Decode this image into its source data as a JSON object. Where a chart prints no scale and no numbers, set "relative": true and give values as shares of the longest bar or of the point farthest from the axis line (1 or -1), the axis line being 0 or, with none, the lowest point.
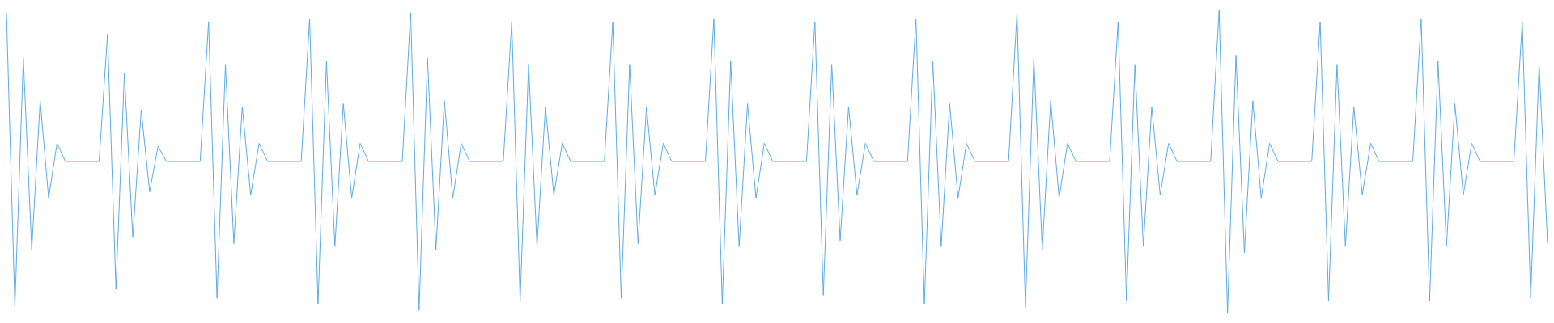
{
  "chart_data": {
    "type": "line",
    "relative": true,
    "color": "#5dade2",
    "categories": [
      null,
      null,
      null,
      null,
      null,
      null,
      null,
      null,
      null,
      null,
      null,
      null,
      null,
      null,
      null,
      null,
      null,
      null,
      null,
      null,
      null,
      null,
      null,
      null,
      null,
      null,
      null,
      null,
      null,
      null,
      null,
      null,
      null,
      null,
      null,
      null,
      null,
      null,
      null,
      null,
      null,
      null,
      null,
      null,
      null,
      null,
      null,
      null,
      null,
      null,
      null,
      null,
      null,
      null,
      null,
      null,
      null,
      null,
      null,
      null,
      null,
      null,
      null,
      null,
      null,
      null,
      null,
      null,
      null,
      null,
      null,
      null,
      null,
      null,
      null,
      null,
      null,
      null,
      null,
      null,
      null,
      null,
      null,
      null,
      null,
      null,
      null,
      null,
      null,
      null,
      null,
      null,
      null,
      null,
      null,
      null,
      null,
      null,
      null,
      null,
      null,
      null,
      null,
      null,
      null,
      null,
      null,
      null,
      null,
      null,
      null,
      null,
      null,
      null,
      null,
      null,
      null,
      null,
      null,
      null,
      null,
      null,
      null,
      null,
      null,
      null,
      null,
      null,
      null,
      null,
      null,
      null,
      null,
      null,
      null,
      null,
      null,
      null,
      null,
      null,
      null,
      null,
      null,
      null,
      null,
      null,
      null,
      null,
      null,
      null,
      null,
      null,
      null,
      null,
      null,
      null,
      null,
      null,
      null,
      null,
      null,
      null,
      null,
      null,
      null,
      null,
      null,
      null,
      null,
      null,
      null,
      null,
      null,
      null,
      null,
      null,
      null,
      null,
      null,
      null,
      null,
      null,
      null,
      null
    ],
    "values": [
      0.99,
      0.02,
      0.84,
      0.21,
      0.7,
      0.38,
      0.56,
      0.5,
      0.5,
      0.5,
      0.5,
      0.5,
      0.92,
      0.08,
      0.79,
      0.25,
      0.67,
      0.4,
      0.55,
      0.5,
      0.5,
      0.5,
      0.5,
      0.5,
      0.96,
      0.05,
      0.82,
      0.23,
      0.68,
      0.39,
      0.56,
      0.5,
      0.5,
      0.5,
      0.5,
      0.5,
      0.97,
      0.03,
      0.83,
      0.22,
      0.69,
      0.38,
      0.56,
      0.5,
      0.5,
      0.5,
      0.5,
      0.5,
      0.99,
      0.01,
      0.84,
      0.21,
      0.7,
      0.38,
      0.56,
      0.5,
      0.5,
      0.5,
      0.5,
      0.5,
      0.96,
      0.04,
      0.82,
      0.22,
      0.68,
      0.39,
      0.56,
      0.5,
      0.5,
      0.5,
      0.5,
      0.5,
      0.96,
      0.05,
      0.82,
      0.23,
      0.68,
      0.39,
      0.56,
      0.5,
      0.5,
      0.5,
      0.5,
      0.5,
      0.97,
      0.03,
      0.83,
      0.22,
      0.69,
      0.38,
      0.56,
      0.5,
      0.5,
      0.5,
      0.5,
      0.5,
      0.96,
      0.06,
      0.82,
      0.24,
      0.68,
      0.39,
      0.56,
      0.5,
      0.5,
      0.5,
      0.5,
      0.5,
      0.97,
      0.03,
      0.83,
      0.22,
      0.69,
      0.38,
      0.56,
      0.5,
      0.5,
      0.5,
      0.5,
      0.5,
      0.99,
      0.02,
      0.84,
      0.21,
      0.7,
      0.38,
      0.56,
      0.5,
      0.5,
      0.5,
      0.5,
      0.5,
      0.96,
      0.04,
      0.82,
      0.22,
      0.68,
      0.39,
      0.56,
      0.5,
      0.5,
      0.5,
      0.5,
      0.5,
      1,
      0,
      0.85,
      0.2,
      0.7,
      0.38,
      0.56,
      0.5,
      0.5,
      0.5,
      0.5,
      0.5,
      0.96,
      0.04,
      0.82,
      0.22,
      0.68,
      0.39,
      0.56,
      0.5,
      0.5,
      0.5,
      0.5,
      0.5,
      0.97,
      0.04,
      0.83,
      0.22,
      0.69,
      0.39,
      0.56,
      0.5,
      0.5,
      0.5,
      0.5,
      0.5,
      0.96,
      0.05,
      0.82,
      0.23
    ]
  }
}
